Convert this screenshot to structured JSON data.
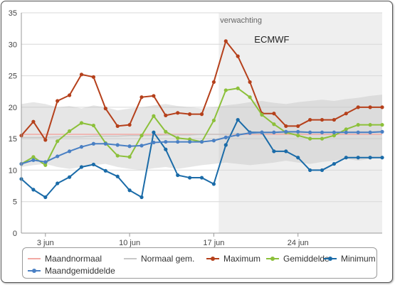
{
  "chart_data": {
    "type": "line",
    "title": "",
    "xlabel": "",
    "ylabel": "",
    "ylim": [
      0,
      35
    ],
    "yticks": [
      0,
      5,
      10,
      15,
      20,
      25,
      30,
      35
    ],
    "xlim": [
      1,
      31
    ],
    "xticks": [
      {
        "x": 3,
        "label": "3 jun"
      },
      {
        "x": 10,
        "label": "10 jun"
      },
      {
        "x": 17,
        "label": "17 jun"
      },
      {
        "x": 24,
        "label": "24 jun"
      }
    ],
    "forecast": {
      "start": 18,
      "label": "verwachting",
      "model_label": "ECMWF"
    },
    "band": {
      "x": [
        1,
        2,
        3,
        4,
        5,
        6,
        7,
        8,
        9,
        10,
        11,
        12,
        13,
        14,
        15,
        16,
        17,
        18,
        19,
        20,
        21,
        22,
        23,
        24,
        25,
        26,
        27,
        28,
        29,
        30,
        31
      ],
      "upper": [
        20.5,
        20.8,
        20.5,
        20.0,
        20.2,
        19.8,
        20.3,
        20.0,
        19.5,
        19.8,
        20.0,
        20.3,
        20.5,
        20.2,
        20.0,
        19.8,
        20.0,
        20.3,
        20.5,
        20.8,
        21.0,
        20.7,
        20.5,
        20.8,
        21.0,
        21.2,
        21.0,
        21.3,
        21.5,
        21.8,
        22.0
      ],
      "lower": [
        10.5,
        10.8,
        11.0,
        10.5,
        10.2,
        10.5,
        10.8,
        11.0,
        10.5,
        10.2,
        10.0,
        10.3,
        10.5,
        10.2,
        10.5,
        10.8,
        11.0,
        11.2,
        11.0,
        10.8,
        11.0,
        11.2,
        11.5,
        11.2,
        11.0,
        11.3,
        11.5,
        11.8,
        11.5,
        11.8,
        12.0
      ]
    },
    "series": [
      {
        "name": "Maandnormaal",
        "color": "#f2a9a3",
        "marker": false,
        "x": [
          1,
          31
        ],
        "values": [
          15.7,
          15.7
        ]
      },
      {
        "name": "Normaal gem.",
        "color": "#c8c8c8",
        "marker": false,
        "x": [
          1,
          2,
          3,
          4,
          5,
          6,
          7,
          8,
          9,
          10,
          11,
          12,
          13,
          14,
          15,
          16,
          17,
          18,
          19,
          20,
          21,
          22,
          23,
          24,
          25,
          26,
          27,
          28,
          29,
          30,
          31
        ],
        "values": [
          15.2,
          15.2,
          15.2,
          15.3,
          15.3,
          15.3,
          15.4,
          15.4,
          15.4,
          15.5,
          15.5,
          15.5,
          15.6,
          15.6,
          15.6,
          15.7,
          15.7,
          15.7,
          15.8,
          15.8,
          15.8,
          15.9,
          15.9,
          15.9,
          16.0,
          16.0,
          16.0,
          16.1,
          16.1,
          16.1,
          16.2
        ]
      },
      {
        "name": "Maximum",
        "color": "#b5401b",
        "marker": true,
        "x": [
          1,
          2,
          3,
          4,
          5,
          6,
          7,
          8,
          9,
          10,
          11,
          12,
          13,
          14,
          15,
          16,
          17,
          18,
          19,
          20,
          21,
          22,
          23,
          24,
          25,
          26,
          27,
          28,
          29,
          30,
          31
        ],
        "values": [
          15.5,
          17.7,
          14.8,
          21.0,
          21.9,
          25.2,
          24.8,
          19.8,
          17.0,
          17.2,
          21.6,
          21.8,
          18.7,
          19.1,
          18.9,
          18.9,
          24.0,
          30.5,
          28.1,
          24.0,
          19.0,
          19.0,
          17.0,
          17.0,
          18.0,
          18.0,
          18.0,
          19.0,
          20.0,
          20.0,
          20.0
        ]
      },
      {
        "name": "Gemiddelde",
        "color": "#8cc03a",
        "marker": true,
        "x": [
          1,
          2,
          3,
          4,
          5,
          6,
          7,
          8,
          9,
          10,
          11,
          12,
          13,
          14,
          15,
          16,
          17,
          18,
          19,
          20,
          21,
          22,
          23,
          24,
          25,
          26,
          27,
          28,
          29,
          30,
          31
        ],
        "values": [
          11.0,
          12.1,
          10.8,
          14.6,
          16.2,
          17.5,
          17.1,
          14.3,
          12.3,
          12.1,
          15.5,
          18.6,
          16.1,
          15.1,
          14.9,
          14.5,
          17.9,
          22.7,
          23.0,
          21.6,
          18.8,
          17.3,
          16.0,
          15.5,
          15.0,
          15.0,
          15.5,
          16.5,
          17.2,
          17.2,
          17.2
        ]
      },
      {
        "name": "Minimum",
        "color": "#1a6ba8",
        "marker": true,
        "x": [
          1,
          2,
          3,
          4,
          5,
          6,
          7,
          8,
          9,
          10,
          11,
          12,
          13,
          14,
          15,
          16,
          17,
          18,
          19,
          20,
          21,
          22,
          23,
          24,
          25,
          26,
          27,
          28,
          29,
          30,
          31
        ],
        "values": [
          8.6,
          6.9,
          5.7,
          7.9,
          8.9,
          10.5,
          10.9,
          9.9,
          9.0,
          6.8,
          5.7,
          16.0,
          13.3,
          9.2,
          8.8,
          8.8,
          7.8,
          14.0,
          18.0,
          16.0,
          16.0,
          13.0,
          13.0,
          12.0,
          10.0,
          10.0,
          11.0,
          12.0,
          12.0,
          12.0,
          12.0
        ]
      },
      {
        "name": "Maandgemiddelde",
        "color": "#4a80c4",
        "marker": true,
        "x": [
          1,
          2,
          3,
          4,
          5,
          6,
          7,
          8,
          9,
          10,
          11,
          12,
          13,
          14,
          15,
          16,
          17,
          18,
          19,
          20,
          21,
          22,
          23,
          24,
          25,
          26,
          27,
          28,
          29,
          30,
          31
        ],
        "values": [
          11.0,
          11.6,
          11.3,
          12.2,
          13.0,
          13.7,
          14.2,
          14.2,
          14.0,
          13.8,
          13.9,
          14.4,
          14.5,
          14.5,
          14.5,
          14.5,
          14.7,
          15.2,
          15.6,
          15.9,
          16.0,
          16.0,
          16.1,
          16.1,
          16.0,
          16.0,
          16.0,
          16.0,
          16.0,
          16.0,
          16.1
        ]
      }
    ]
  }
}
